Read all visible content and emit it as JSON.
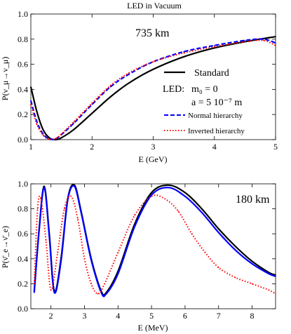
{
  "chart_data": [
    {
      "type": "line",
      "title": "LED in Vacuum",
      "annotation": "735 km",
      "xlabel": "E (GeV)",
      "ylabel": "P(ν_μ→ν_μ)",
      "xlim": [
        1,
        5
      ],
      "ylim": [
        0,
        1
      ],
      "xticks": [
        "1",
        "2",
        "3",
        "4",
        "5"
      ],
      "yticks": [
        "0.0",
        "0.2",
        "0.4",
        "0.6",
        "0.8",
        "1.0"
      ],
      "legend": {
        "placement": "center-right",
        "standard": "Standard",
        "led_label": "LED:",
        "led_m0": "m₀ = 0",
        "led_a": "a   = 5 10⁻⁷ m",
        "normal": "Normal hierarchy",
        "inverted": "Inverted hierarchy"
      },
      "series": [
        {
          "name": "Standard",
          "color": "#000000",
          "style": "solid",
          "x": [
            1.0,
            1.1,
            1.2,
            1.3,
            1.4,
            1.5,
            1.7,
            2.0,
            2.3,
            2.6,
            3.0,
            3.5,
            4.0,
            4.5,
            5.0
          ],
          "y": [
            0.42,
            0.22,
            0.08,
            0.015,
            0.0,
            0.015,
            0.08,
            0.21,
            0.34,
            0.45,
            0.56,
            0.66,
            0.73,
            0.78,
            0.82
          ]
        },
        {
          "name": "Normal hierarchy",
          "color": "#0000ff",
          "style": "dashed",
          "x": [
            1.0,
            1.1,
            1.2,
            1.3,
            1.4,
            1.5,
            1.7,
            2.0,
            2.3,
            2.6,
            3.0,
            3.5,
            4.0,
            4.5,
            4.8,
            5.0
          ],
          "y": [
            0.31,
            0.14,
            0.045,
            0.005,
            0.005,
            0.04,
            0.13,
            0.28,
            0.42,
            0.52,
            0.62,
            0.7,
            0.75,
            0.79,
            0.8,
            0.77
          ]
        },
        {
          "name": "Inverted hierarchy",
          "color": "#ff0000",
          "style": "dotted",
          "x": [
            1.0,
            1.1,
            1.2,
            1.3,
            1.4,
            1.5,
            1.7,
            2.0,
            2.3,
            2.6,
            3.0,
            3.5,
            4.0,
            4.5,
            4.8,
            5.0
          ],
          "y": [
            0.28,
            0.12,
            0.035,
            0.003,
            0.008,
            0.045,
            0.14,
            0.29,
            0.43,
            0.53,
            0.62,
            0.69,
            0.74,
            0.78,
            0.79,
            0.75
          ]
        }
      ]
    },
    {
      "type": "line",
      "annotation": "180 km",
      "xlabel": "E (MeV)",
      "ylabel": "P(ν̄_e→ν̄_e)",
      "xlim": [
        1.4,
        8.7
      ],
      "ylim": [
        0,
        1
      ],
      "xticks": [
        "2",
        "3",
        "4",
        "5",
        "6",
        "7",
        "8"
      ],
      "yticks": [
        "0.0",
        "0.2",
        "0.4",
        "0.6",
        "0.8",
        "1.0"
      ],
      "series": [
        {
          "name": "Standard",
          "color": "#000000",
          "style": "solid",
          "x": [
            1.5,
            1.65,
            1.8,
            1.95,
            2.1,
            2.3,
            2.5,
            2.7,
            2.9,
            3.2,
            3.5,
            3.65,
            4.0,
            4.5,
            5.0,
            5.5,
            6.0,
            6.5,
            7.0,
            7.5,
            8.0,
            8.5,
            8.7
          ],
          "y": [
            0.14,
            0.65,
            0.98,
            0.6,
            0.14,
            0.4,
            0.88,
            0.99,
            0.78,
            0.4,
            0.14,
            0.13,
            0.3,
            0.68,
            0.93,
            0.99,
            0.93,
            0.8,
            0.64,
            0.5,
            0.38,
            0.29,
            0.27
          ]
        },
        {
          "name": "Normal hierarchy",
          "color": "#0000ff",
          "style": "solid",
          "x": [
            1.5,
            1.65,
            1.8,
            1.95,
            2.1,
            2.3,
            2.5,
            2.7,
            2.9,
            3.2,
            3.5,
            3.65,
            4.0,
            4.5,
            5.0,
            5.5,
            6.0,
            6.5,
            7.0,
            7.5,
            8.0,
            8.5,
            8.7
          ],
          "y": [
            0.13,
            0.64,
            0.97,
            0.58,
            0.13,
            0.38,
            0.87,
            0.98,
            0.77,
            0.39,
            0.13,
            0.12,
            0.28,
            0.66,
            0.91,
            0.97,
            0.9,
            0.77,
            0.61,
            0.47,
            0.36,
            0.28,
            0.26
          ]
        },
        {
          "name": "Inverted hierarchy",
          "color": "#ff0000",
          "style": "dotted",
          "x": [
            1.5,
            1.6,
            1.7,
            1.85,
            2.0,
            2.2,
            2.4,
            2.6,
            2.8,
            3.0,
            3.2,
            3.4,
            3.6,
            4.0,
            4.5,
            5.0,
            5.4,
            5.8,
            6.2,
            6.6,
            7.0,
            7.5,
            8.0,
            8.5,
            8.7
          ],
          "y": [
            0.2,
            0.8,
            0.88,
            0.55,
            0.15,
            0.45,
            0.8,
            0.9,
            0.72,
            0.4,
            0.2,
            0.12,
            0.2,
            0.45,
            0.75,
            0.9,
            0.88,
            0.78,
            0.6,
            0.45,
            0.33,
            0.25,
            0.2,
            0.15,
            0.12
          ]
        }
      ]
    }
  ]
}
